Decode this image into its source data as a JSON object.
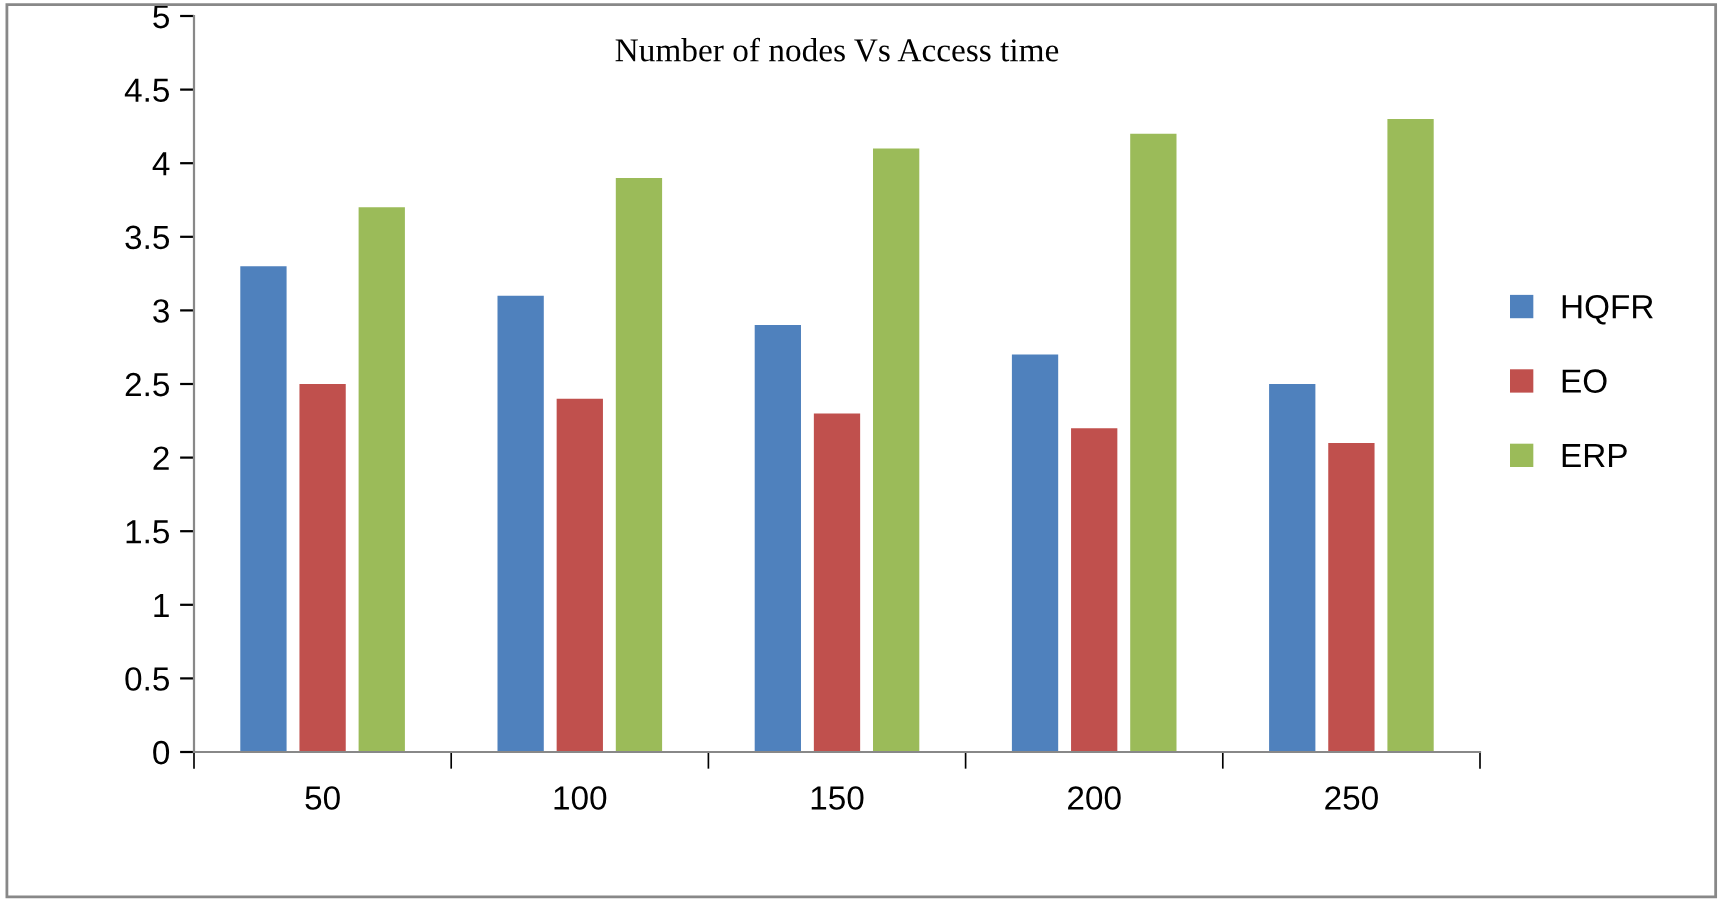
{
  "chart_data": {
    "type": "bar",
    "title": "Number of nodes Vs Access time",
    "categories": [
      "50",
      "100",
      "150",
      "200",
      "250"
    ],
    "series": [
      {
        "name": "HQFR",
        "color": "#4f81bd",
        "values": [
          3.3,
          3.1,
          2.9,
          2.7,
          2.5
        ]
      },
      {
        "name": "EO",
        "color": "#c0504d",
        "values": [
          2.5,
          2.4,
          2.3,
          2.2,
          2.1
        ]
      },
      {
        "name": "ERP",
        "color": "#9bbb59",
        "values": [
          3.7,
          3.9,
          4.1,
          4.2,
          4.3
        ]
      }
    ],
    "ylim": [
      0,
      5
    ],
    "yticks": [
      0,
      0.5,
      1,
      1.5,
      2,
      2.5,
      3,
      3.5,
      4,
      4.5,
      5
    ],
    "grid": false,
    "legend": "right"
  }
}
